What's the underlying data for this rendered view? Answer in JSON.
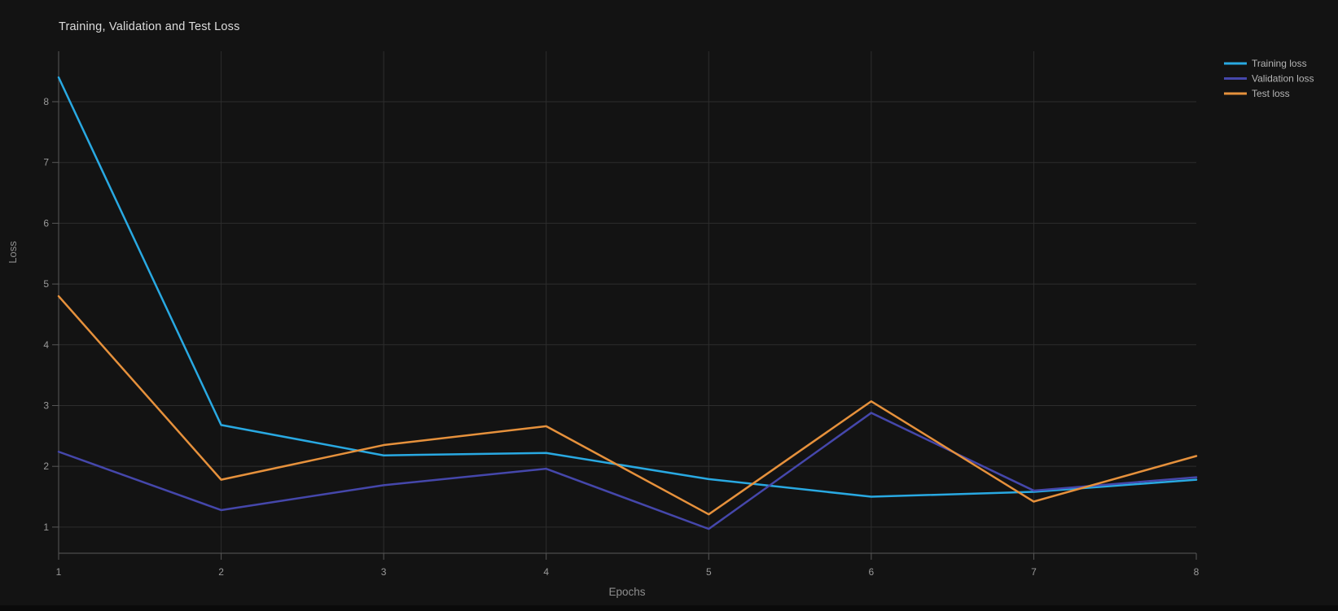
{
  "chart_data": {
    "type": "line",
    "title": "Training, Validation and Test Loss",
    "xlabel": "Epochs",
    "ylabel": "Loss",
    "x": [
      1,
      2,
      3,
      4,
      5,
      6,
      7,
      8
    ],
    "series": [
      {
        "name": "Training loss",
        "color": "#29a9e2",
        "values": [
          8.4,
          2.68,
          2.18,
          2.22,
          1.79,
          1.5,
          1.58,
          1.78
        ]
      },
      {
        "name": "Validation loss",
        "color": "#4547ab",
        "values": [
          2.24,
          1.28,
          1.69,
          1.96,
          0.97,
          2.88,
          1.6,
          1.82
        ]
      },
      {
        "name": "Test loss",
        "color": "#e6913c",
        "values": [
          4.8,
          1.78,
          2.35,
          2.66,
          1.21,
          3.07,
          1.42,
          2.17
        ]
      }
    ],
    "xlim": [
      1,
      8
    ],
    "ylim": [
      0.57,
      8.83
    ],
    "x_ticks": [
      1,
      2,
      3,
      4,
      5,
      6,
      7,
      8
    ],
    "x_grid_ticks": [
      2,
      3,
      4,
      5,
      6,
      7
    ],
    "y_ticks": [
      1,
      2,
      3,
      4,
      5,
      6,
      7,
      8
    ],
    "grid": true,
    "legend_position": "top-right-outside",
    "colors": {
      "background": "#131313",
      "grid": "#2d2d2d",
      "axis": "#585858",
      "tick_label": "#9a9a9a",
      "axis_label": "#8f8f8f",
      "title": "#dcdcdc",
      "legend_text": "#b5b5b5"
    }
  }
}
